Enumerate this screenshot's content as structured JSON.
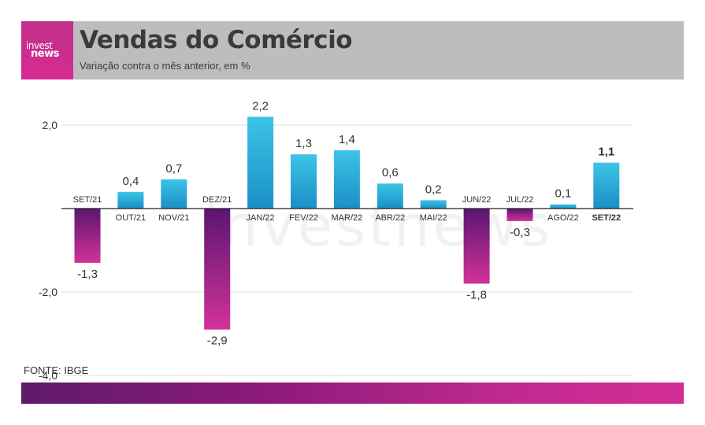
{
  "brand": {
    "logo_line1": "invest",
    "logo_line2": "news",
    "accent": "#d62a92"
  },
  "header": {
    "title": "Vendas do Comércio",
    "subtitle": "Variação contra o mês anterior, em %"
  },
  "watermark": "investnews",
  "source": "FONTE: IBGE",
  "chart_data": {
    "type": "bar",
    "categories": [
      "SET/21",
      "OUT/21",
      "NOV/21",
      "DEZ/21",
      "JAN/22",
      "FEV/22",
      "MAR/22",
      "ABR/22",
      "MAI/22",
      "JUN/22",
      "JUL/22",
      "AGO/22",
      "SET/22"
    ],
    "values": [
      -1.3,
      0.4,
      0.7,
      -2.9,
      2.2,
      1.3,
      1.4,
      0.6,
      0.2,
      -1.8,
      -0.3,
      0.1,
      1.1
    ],
    "value_labels": [
      "-1,3",
      "0,4",
      "0,7",
      "-2,9",
      "2,2",
      "1,3",
      "1,4",
      "0,6",
      "0,2",
      "-1,8",
      "-0,3",
      "0,1",
      "1,1"
    ],
    "highlight": "SET/22",
    "yticks": [
      2.0,
      -2.0,
      -4.0
    ],
    "ytick_labels": [
      "2,0",
      "-2,0",
      "-4,0"
    ],
    "ylim": [
      -4.0,
      2.5
    ],
    "grid": true,
    "colors": {
      "positive_top": "#3cc4e6",
      "positive_bottom": "#1a8fc7",
      "negative_top": "#5a1670",
      "negative_bottom": "#d2329a"
    }
  }
}
